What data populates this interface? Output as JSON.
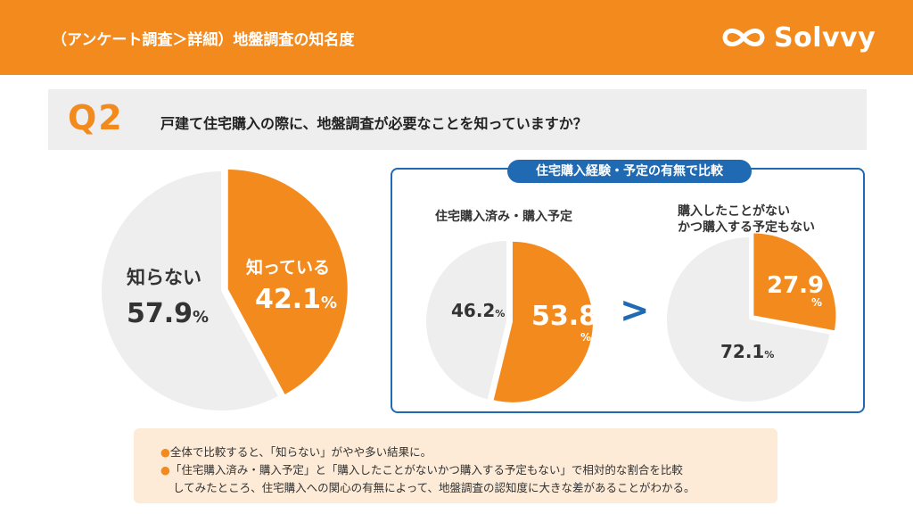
{
  "header": {
    "title": "（アンケート調査＞詳細）地盤調査の知名度",
    "brand": "Solvvy",
    "background": "#f28a1e"
  },
  "question": {
    "label": "Q2",
    "text": "戸建て住宅購入の際に、地盤調査が必要なことを知っていますか？"
  },
  "compare": {
    "tag": "住宅購入経験・予定の有無で比較",
    "symbol": ">"
  },
  "main_pie": {
    "known_label": "知っている",
    "known_value": "42.1",
    "unknown_label": "知らない",
    "unknown_value": "57.9",
    "unit": "%"
  },
  "pie_a": {
    "title": "住宅購入済み・購入予定",
    "known_value": "53.8",
    "unknown_value": "46.2",
    "unit": "%"
  },
  "pie_b": {
    "title_line1": "購入したことがない",
    "title_line2": "かつ購入する予定もない",
    "known_value": "27.9",
    "unknown_value": "72.1",
    "unit": "%"
  },
  "notes": {
    "bullet": "●",
    "line1": "全体で比較すると、「知らない」がやや多い結果に。",
    "line2": "「住宅購入済み・購入予定」と「購入したことがないかつ購入する予定もない」で相対的な割合を比較",
    "line3": "してみたところ、住宅購入への関心の有無によって、地盤調査の認知度に大きな差があることがわかる。"
  },
  "colors": {
    "known": "#f28a1e",
    "unknown": "#eeeeee",
    "accent_blue": "#1f6ab3"
  },
  "chart_data": [
    {
      "type": "pie",
      "categories": [
        "知っている",
        "知らない"
      ],
      "values": [
        42.1,
        57.9
      ],
      "unit": "%"
    },
    {
      "type": "pie",
      "title": "住宅購入済み・購入予定",
      "categories": [
        "知っている",
        "知らない"
      ],
      "values": [
        53.8,
        46.2
      ],
      "unit": "%"
    },
    {
      "type": "pie",
      "title": "購入したことがない かつ購入する予定もない",
      "categories": [
        "知っている",
        "知らない"
      ],
      "values": [
        27.9,
        72.1
      ],
      "unit": "%"
    }
  ]
}
